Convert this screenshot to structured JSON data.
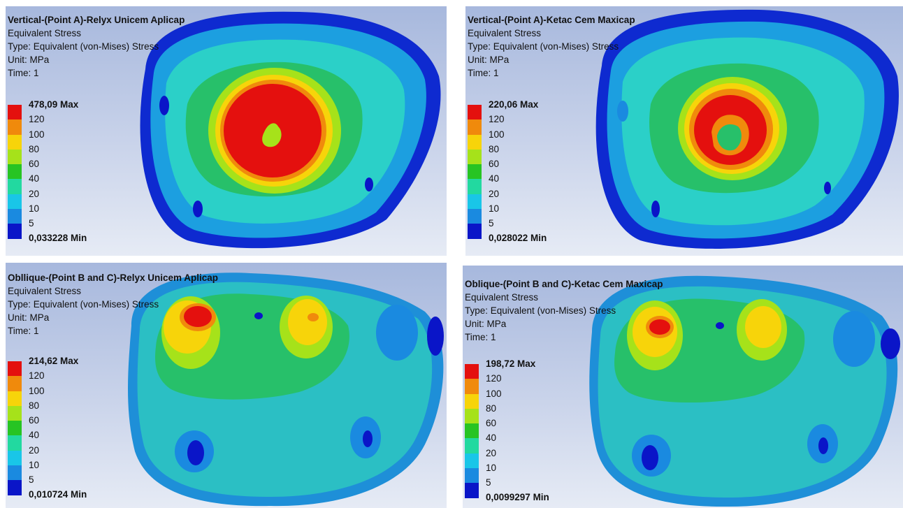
{
  "info_lines": [
    "Equivalent Stress",
    "Type: Equivalent (von-Mises) Stress",
    "Unit: MPa",
    "Time: 1"
  ],
  "legend_colors": [
    "#e4100e",
    "#f08a0c",
    "#f7d40a",
    "#a6e21a",
    "#27c423",
    "#22d9a0",
    "#19c6e8",
    "#1a8ae0",
    "#0a15c8"
  ],
  "legend_values": [
    "120",
    "100",
    "80",
    "60",
    "40",
    "20",
    "10",
    "5"
  ],
  "panels": [
    {
      "title": "Vertical-(Point A)-Relyx Unicem Aplicap",
      "max": "478,09 Max",
      "min": "0,033228 Min"
    },
    {
      "title": "Vertical-(Point A)-Ketac Cem Maxicap",
      "max": "220,06 Max",
      "min": "0,028022 Min"
    },
    {
      "title": "Obllique-(Point B and C)-Relyx Unicem Aplicap",
      "max": "214,62 Max",
      "min": "0,010724 Min"
    },
    {
      "title": "Oblique-(Point B and C)-Ketac Cem Maxicap",
      "max": "198,72 Max",
      "min": "0,0099297 Min"
    }
  ]
}
